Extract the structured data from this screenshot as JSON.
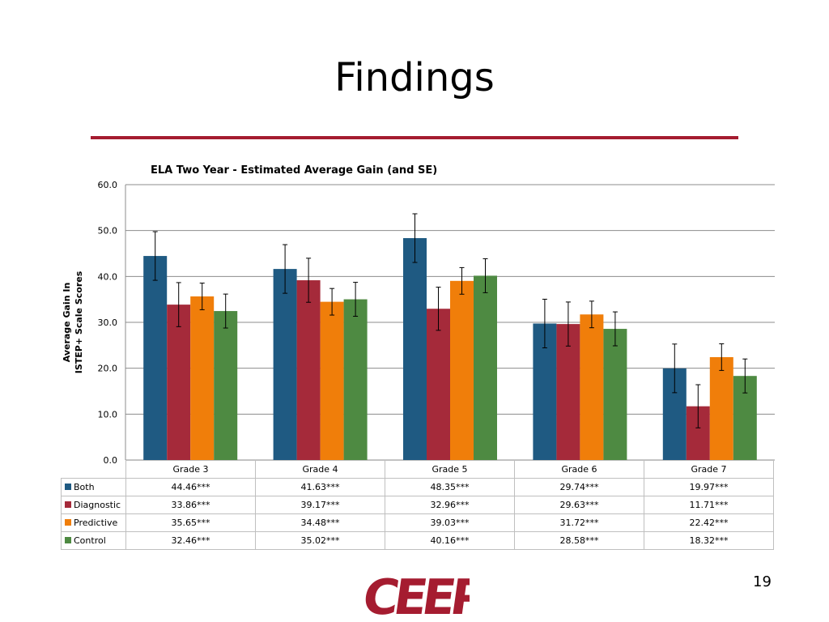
{
  "slide": {
    "title": "Findings",
    "page_number": "19",
    "logo_text": "CEEP",
    "colors": {
      "rule": "#A51C30",
      "logo": "#A51C30"
    }
  },
  "chart_data": {
    "type": "bar",
    "title": "ELA Two Year - Estimated Average Gain (and SE)",
    "ylabel": [
      "Average Gain In",
      "ISTEP+ Scale Scores"
    ],
    "xlabel": "",
    "ylim": [
      0,
      60
    ],
    "yticks": [
      "0.0",
      "10.0",
      "20.0",
      "30.0",
      "40.0",
      "50.0",
      "60.0"
    ],
    "grid": true,
    "categories": [
      "Grade 3",
      "Grade 4",
      "Grade 5",
      "Grade 6",
      "Grade 7"
    ],
    "series": [
      {
        "name": "Both",
        "color": "#1F5A82",
        "values": [
          44.46,
          41.63,
          48.35,
          29.74,
          19.97
        ],
        "labels": [
          "44.46***",
          "41.63***",
          "48.35***",
          "29.74***",
          "19.97***"
        ],
        "se": [
          5.3,
          5.3,
          5.3,
          5.3,
          5.3
        ]
      },
      {
        "name": "Diagnostic",
        "color": "#A52A3A",
        "values": [
          33.86,
          39.17,
          32.96,
          29.63,
          11.71
        ],
        "labels": [
          "33.86***",
          "39.17***",
          "32.96***",
          "29.63***",
          "11.71***"
        ],
        "se": [
          4.8,
          4.8,
          4.7,
          4.8,
          4.7
        ]
      },
      {
        "name": "Predictive",
        "color": "#F07E0A",
        "values": [
          35.65,
          34.48,
          39.03,
          31.72,
          22.42
        ],
        "labels": [
          "35.65***",
          "34.48***",
          "39.03***",
          "31.72***",
          "22.42***"
        ],
        "se": [
          2.9,
          2.9,
          2.9,
          2.9,
          2.9
        ]
      },
      {
        "name": "Control",
        "color": "#4E8A42",
        "values": [
          32.46,
          35.02,
          40.16,
          28.58,
          18.32
        ],
        "labels": [
          "32.46***",
          "35.02***",
          "40.16***",
          "28.58***",
          "18.32***"
        ],
        "se": [
          3.7,
          3.7,
          3.7,
          3.7,
          3.7
        ]
      }
    ]
  }
}
